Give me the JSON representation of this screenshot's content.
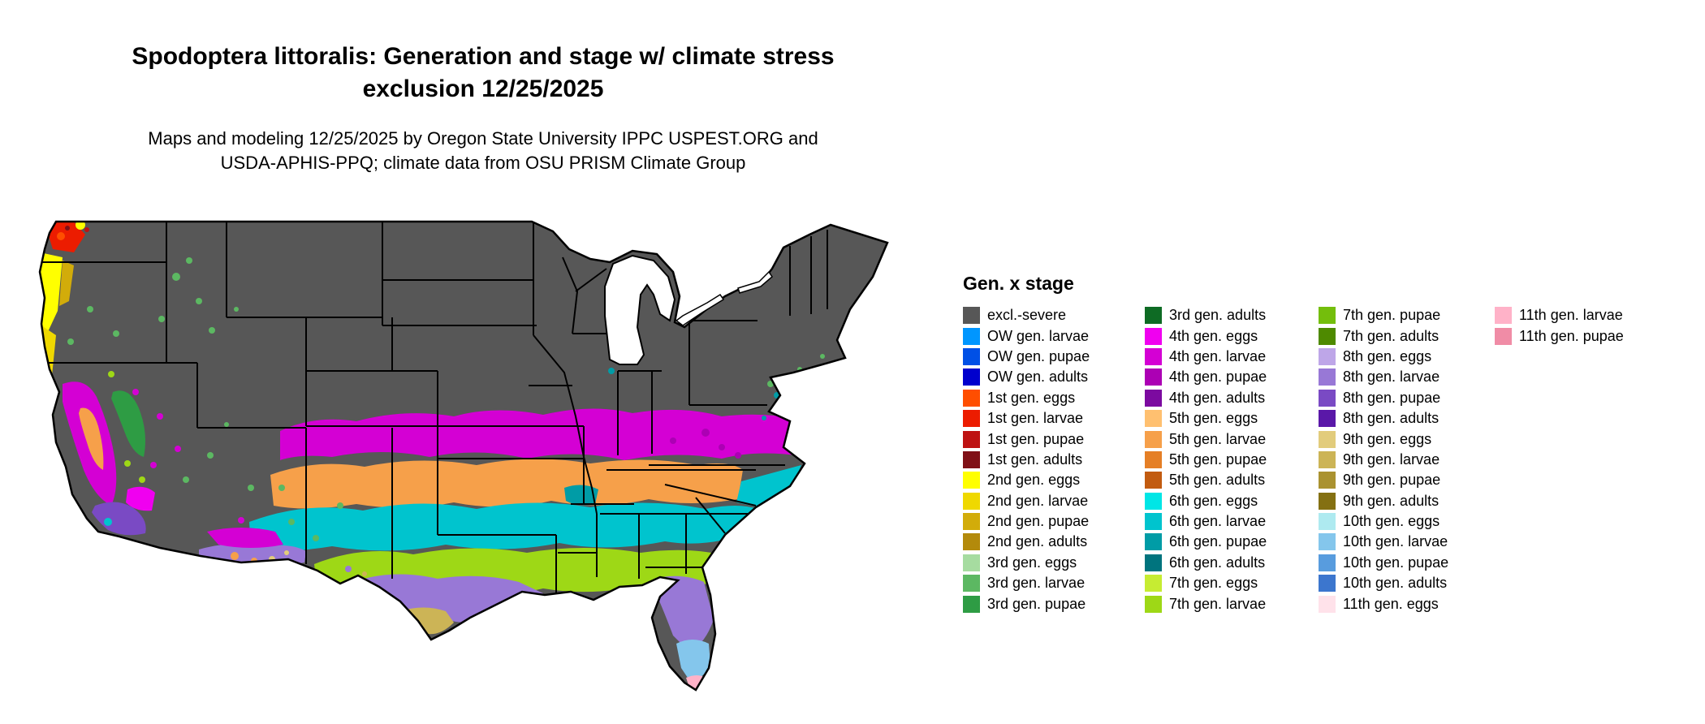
{
  "title": {
    "line1": "Spodoptera littoralis: Generation and stage w/ climate stress",
    "line2": "exclusion 12/25/2025"
  },
  "subtitle": {
    "line1": "Maps and modeling 12/25/2025 by Oregon State University IPPC USPEST.ORG and",
    "line2": "USDA-APHIS-PPQ; climate data from OSU PRISM Climate Group"
  },
  "legend": {
    "title": "Gen. x stage",
    "columns": [
      [
        {
          "label": "excl.-severe",
          "key": "excl_severe"
        },
        {
          "label": "OW gen. larvae",
          "key": "ow_larvae"
        },
        {
          "label": "OW gen. pupae",
          "key": "ow_pupae"
        },
        {
          "label": "OW gen. adults",
          "key": "ow_adults"
        },
        {
          "label": "1st gen. eggs",
          "key": "g1_eggs"
        },
        {
          "label": "1st gen. larvae",
          "key": "g1_larvae"
        },
        {
          "label": "1st gen. pupae",
          "key": "g1_pupae"
        },
        {
          "label": "1st gen. adults",
          "key": "g1_adults"
        },
        {
          "label": "2nd gen. eggs",
          "key": "g2_eggs"
        },
        {
          "label": "2nd gen. larvae",
          "key": "g2_larvae"
        },
        {
          "label": "2nd gen. pupae",
          "key": "g2_pupae"
        },
        {
          "label": "2nd gen. adults",
          "key": "g2_adults"
        },
        {
          "label": "3rd gen. eggs",
          "key": "g3_eggs"
        },
        {
          "label": "3rd gen. larvae",
          "key": "g3_larvae"
        },
        {
          "label": "3rd gen. pupae",
          "key": "g3_pupae"
        }
      ],
      [
        {
          "label": "3rd gen. adults",
          "key": "g3_adults"
        },
        {
          "label": "4th gen. eggs",
          "key": "g4_eggs"
        },
        {
          "label": "4th gen. larvae",
          "key": "g4_larvae"
        },
        {
          "label": "4th gen. pupae",
          "key": "g4_pupae"
        },
        {
          "label": "4th gen. adults",
          "key": "g4_adults"
        },
        {
          "label": "5th gen. eggs",
          "key": "g5_eggs"
        },
        {
          "label": "5th gen. larvae",
          "key": "g5_larvae"
        },
        {
          "label": "5th gen. pupae",
          "key": "g5_pupae"
        },
        {
          "label": "5th gen. adults",
          "key": "g5_adults"
        },
        {
          "label": "6th gen. eggs",
          "key": "g6_eggs"
        },
        {
          "label": "6th gen. larvae",
          "key": "g6_larvae"
        },
        {
          "label": "6th gen. pupae",
          "key": "g6_pupae"
        },
        {
          "label": "6th gen. adults",
          "key": "g6_adults"
        },
        {
          "label": "7th gen. eggs",
          "key": "g7_eggs"
        },
        {
          "label": "7th gen. larvae",
          "key": "g7_larvae"
        }
      ],
      [
        {
          "label": "7th gen. pupae",
          "key": "g7_pupae"
        },
        {
          "label": "7th gen. adults",
          "key": "g7_adults"
        },
        {
          "label": "8th gen. eggs",
          "key": "g8_eggs"
        },
        {
          "label": "8th gen. larvae",
          "key": "g8_larvae"
        },
        {
          "label": "8th gen. pupae",
          "key": "g8_pupae"
        },
        {
          "label": "8th gen. adults",
          "key": "g8_adults"
        },
        {
          "label": "9th gen. eggs",
          "key": "g9_eggs"
        },
        {
          "label": "9th gen. larvae",
          "key": "g9_larvae"
        },
        {
          "label": "9th gen. pupae",
          "key": "g9_pupae"
        },
        {
          "label": "9th gen. adults",
          "key": "g9_adults"
        },
        {
          "label": "10th gen. eggs",
          "key": "g10_eggs"
        },
        {
          "label": "10th gen. larvae",
          "key": "g10_larvae"
        },
        {
          "label": "10th gen. pupae",
          "key": "g10_pupae"
        },
        {
          "label": "10th gen. adults",
          "key": "g10_adults"
        },
        {
          "label": "11th gen. eggs",
          "key": "g11_eggs"
        }
      ],
      [
        {
          "label": "11th gen. larvae",
          "key": "g11_larvae"
        },
        {
          "label": "11th gen. pupae",
          "key": "g11_pupae"
        }
      ]
    ]
  },
  "colors": {
    "excl_severe": "#575757",
    "ow_larvae": "#0096FF",
    "ow_pupae": "#0050E6",
    "ow_adults": "#0000CD",
    "g1_eggs": "#FF4E00",
    "g1_larvae": "#EC1C00",
    "g1_pupae": "#BE1212",
    "g1_adults": "#801016",
    "g2_eggs": "#FFFF00",
    "g2_larvae": "#EFD800",
    "g2_pupae": "#D2AC0A",
    "g2_adults": "#B38A0B",
    "g3_eggs": "#A6DCA0",
    "g3_larvae": "#5CB862",
    "g3_pupae": "#2E9C44",
    "g3_adults": "#0E6B24",
    "g4_eggs": "#F000F0",
    "g4_larvae": "#D400D4",
    "g4_pupae": "#AC00B4",
    "g4_adults": "#7C0AA0",
    "g5_eggs": "#FFC070",
    "g5_larvae": "#F6A04A",
    "g5_pupae": "#E57F26",
    "g5_adults": "#C25B10",
    "g6_eggs": "#00E6E6",
    "g6_larvae": "#00C4CE",
    "g6_pupae": "#009CA6",
    "g6_adults": "#00747E",
    "g7_eggs": "#C6EC32",
    "g7_larvae": "#9ED816",
    "g7_pupae": "#74BE0C",
    "g7_adults": "#4E8A00",
    "g8_eggs": "#BEA6E8",
    "g8_larvae": "#9878D6",
    "g8_pupae": "#7A4AC4",
    "g8_adults": "#5A18A8",
    "g9_eggs": "#E2CC7C",
    "g9_larvae": "#CCB456",
    "g9_pupae": "#AA9230",
    "g9_adults": "#847012",
    "g10_eggs": "#AEEAF0",
    "g10_larvae": "#84C6EC",
    "g10_pupae": "#589CDE",
    "g10_adults": "#3C76CE",
    "g11_eggs": "#FFE2EA",
    "g11_larvae": "#FFB2C8",
    "g11_pupae": "#F08CA6"
  }
}
